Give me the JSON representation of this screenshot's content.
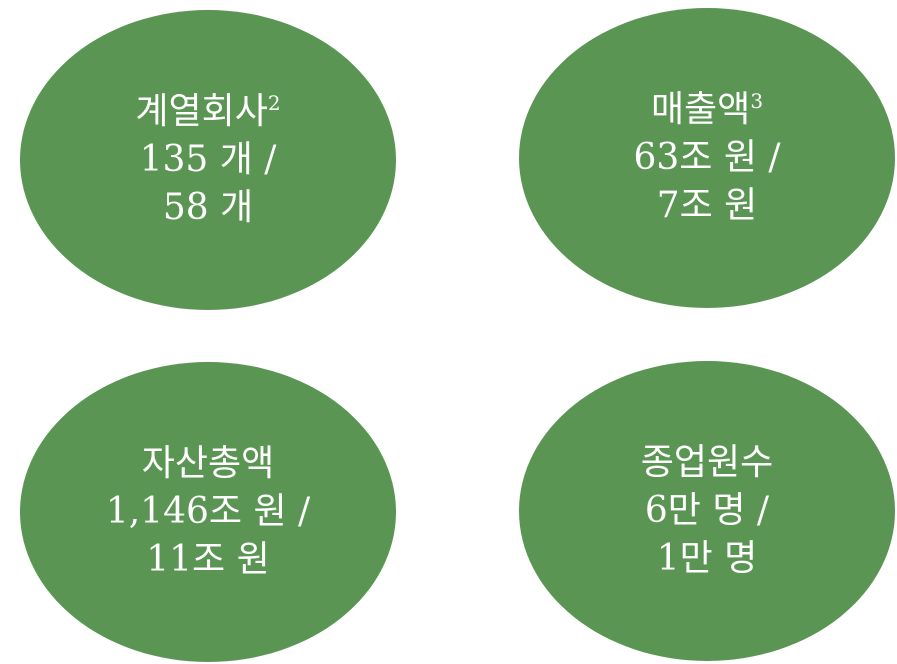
{
  "circles": [
    {
      "title": "계열회사",
      "note": "2",
      "value_1": "135 개 /",
      "value_2": "58 개"
    },
    {
      "title": "매출액",
      "note": "3",
      "value_1": "63조 원 /",
      "value_2": "7조 원"
    },
    {
      "title": "자산총액",
      "note": "",
      "value_1": "1,146조 원 /",
      "value_2": "11조 원"
    },
    {
      "title": "종업원수",
      "note": "",
      "value_1": "6만 명 /",
      "value_2": "1만 명"
    }
  ],
  "colors": {
    "circle_fill": "#5b9554",
    "text": "#ffffff",
    "background": "#ffffff"
  }
}
